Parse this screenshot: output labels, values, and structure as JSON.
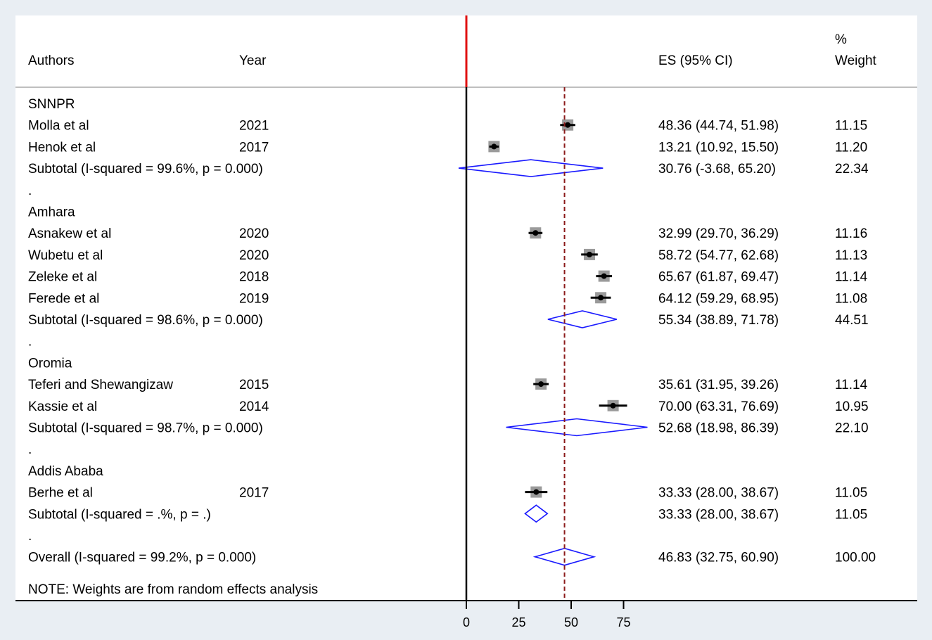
{
  "colors": {
    "background": "#e9eef3",
    "panel": "#ffffff",
    "null_line": "#e01010",
    "overall_line": "#8b1a1a",
    "diamond": "#1a1aff",
    "point": "#000000",
    "weight_box": "#9a9a9a"
  },
  "headers": {
    "authors": "Authors",
    "year": "Year",
    "es": "ES (95% CI)",
    "weight_line1": "%",
    "weight_line2": "Weight"
  },
  "note": "NOTE: Weights are from random effects analysis",
  "chart_data": {
    "type": "forest",
    "x_ticks": [
      "0",
      "25",
      "50",
      "75"
    ],
    "null_value": 0,
    "rows": [
      {
        "kind": "group",
        "label": "SNNPR"
      },
      {
        "kind": "study",
        "label": "Molla et al",
        "year": "2021",
        "es": 48.36,
        "lo": 44.74,
        "hi": 51.98,
        "es_text": "48.36 (44.74, 51.98)",
        "weight": 11.15,
        "weight_text": "11.15"
      },
      {
        "kind": "study",
        "label": "Henok et al",
        "year": "2017",
        "es": 13.21,
        "lo": 10.92,
        "hi": 15.5,
        "es_text": "13.21 (10.92, 15.50)",
        "weight": 11.2,
        "weight_text": "11.20"
      },
      {
        "kind": "subtotal",
        "label": "Subtotal  (I-squared = 99.6%, p = 0.000)",
        "es": 30.76,
        "lo": -3.68,
        "hi": 65.2,
        "es_text": "30.76 (-3.68, 65.20)",
        "weight_text": "22.34"
      },
      {
        "kind": "spacer",
        "label": "."
      },
      {
        "kind": "group",
        "label": "Amhara"
      },
      {
        "kind": "study",
        "label": "Asnakew et al",
        "year": "2020",
        "es": 32.99,
        "lo": 29.7,
        "hi": 36.29,
        "es_text": "32.99 (29.70, 36.29)",
        "weight": 11.16,
        "weight_text": "11.16"
      },
      {
        "kind": "study",
        "label": "Wubetu et al",
        "year": "2020",
        "es": 58.72,
        "lo": 54.77,
        "hi": 62.68,
        "es_text": "58.72 (54.77, 62.68)",
        "weight": 11.13,
        "weight_text": "11.13"
      },
      {
        "kind": "study",
        "label": "Zeleke et al",
        "year": "2018",
        "es": 65.67,
        "lo": 61.87,
        "hi": 69.47,
        "es_text": "65.67 (61.87, 69.47)",
        "weight": 11.14,
        "weight_text": "11.14"
      },
      {
        "kind": "study",
        "label": "Ferede et al",
        "year": "2019",
        "es": 64.12,
        "lo": 59.29,
        "hi": 68.95,
        "es_text": "64.12 (59.29, 68.95)",
        "weight": 11.08,
        "weight_text": "11.08"
      },
      {
        "kind": "subtotal",
        "label": "Subtotal  (I-squared = 98.6%, p = 0.000)",
        "es": 55.34,
        "lo": 38.89,
        "hi": 71.78,
        "es_text": "55.34 (38.89, 71.78)",
        "weight_text": "44.51"
      },
      {
        "kind": "spacer",
        "label": "."
      },
      {
        "kind": "group",
        "label": "Oromia"
      },
      {
        "kind": "study",
        "label": "Teferi and Shewangizaw",
        "year": "2015",
        "es": 35.61,
        "lo": 31.95,
        "hi": 39.26,
        "es_text": "35.61 (31.95, 39.26)",
        "weight": 11.14,
        "weight_text": "11.14"
      },
      {
        "kind": "study",
        "label": "Kassie et al",
        "year": "2014",
        "es": 70.0,
        "lo": 63.31,
        "hi": 76.69,
        "es_text": "70.00 (63.31, 76.69)",
        "weight": 10.95,
        "weight_text": "10.95"
      },
      {
        "kind": "subtotal",
        "label": "Subtotal  (I-squared = 98.7%, p = 0.000)",
        "es": 52.68,
        "lo": 18.98,
        "hi": 86.39,
        "es_text": "52.68 (18.98, 86.39)",
        "weight_text": "22.10"
      },
      {
        "kind": "spacer",
        "label": "."
      },
      {
        "kind": "group",
        "label": "Addis Ababa"
      },
      {
        "kind": "study",
        "label": "Berhe et al",
        "year": "2017",
        "es": 33.33,
        "lo": 28.0,
        "hi": 38.67,
        "es_text": "33.33 (28.00, 38.67)",
        "weight": 11.05,
        "weight_text": "11.05"
      },
      {
        "kind": "subtotal",
        "label": "Subtotal  (I-squared = .%, p = .)",
        "es": 33.33,
        "lo": 28.0,
        "hi": 38.67,
        "es_text": "33.33 (28.00, 38.67)",
        "weight_text": "11.05"
      },
      {
        "kind": "spacer",
        "label": "."
      },
      {
        "kind": "overall",
        "label": "Overall  (I-squared = 99.2%, p = 0.000)",
        "es": 46.83,
        "lo": 32.75,
        "hi": 60.9,
        "es_text": "46.83 (32.75, 60.90)",
        "weight_text": "100.00"
      }
    ]
  }
}
